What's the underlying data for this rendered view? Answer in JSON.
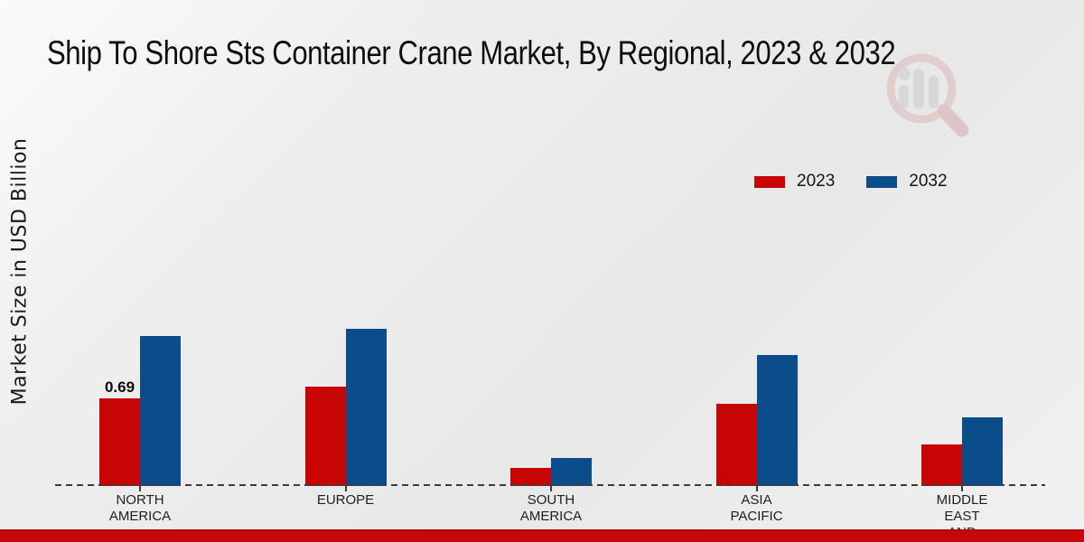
{
  "title": "Ship To Shore Sts Container Crane Market, By Regional, 2023 & 2032",
  "ylabel": "Market Size in USD Billion",
  "legend": [
    {
      "label": "2023",
      "color": "#c70505"
    },
    {
      "label": "2032",
      "color": "#0b4d8b"
    }
  ],
  "colors": {
    "series_2023": "#c70505",
    "series_2032": "#0b4d8b",
    "axis": "#3c3c3c",
    "footer": "#c50707"
  },
  "watermark_icon": "magnifier-bar-chart-logo",
  "chart_data": {
    "type": "bar",
    "categories": [
      "NORTH AMERICA",
      "EUROPE",
      "SOUTH AMERICA",
      "ASIA PACIFIC",
      "MIDDLE EAST AND"
    ],
    "category_lines": [
      [
        "NORTH",
        "AMERICA"
      ],
      [
        "EUROPE"
      ],
      [
        "SOUTH",
        "AMERICA"
      ],
      [
        "ASIA",
        "PACIFIC"
      ],
      [
        "MIDDLE",
        "EAST",
        "AND"
      ]
    ],
    "series": [
      {
        "name": "2023",
        "color": "#c70505",
        "values": [
          0.69,
          0.78,
          0.14,
          0.65,
          0.33
        ]
      },
      {
        "name": "2032",
        "color": "#0b4d8b",
        "values": [
          1.18,
          1.24,
          0.22,
          1.03,
          0.54
        ]
      }
    ],
    "annotations": [
      {
        "series_index": 0,
        "category_index": 0,
        "text": "0.69"
      }
    ],
    "title": "Ship To Shore Sts Container Crane Market, By Regional, 2023 & 2032",
    "xlabel": "",
    "ylabel": "Market Size in USD Billion",
    "ylim": [
      0,
      1.4
    ],
    "grid": false,
    "legend_position": "upper right",
    "baseline_style": "dashed"
  }
}
